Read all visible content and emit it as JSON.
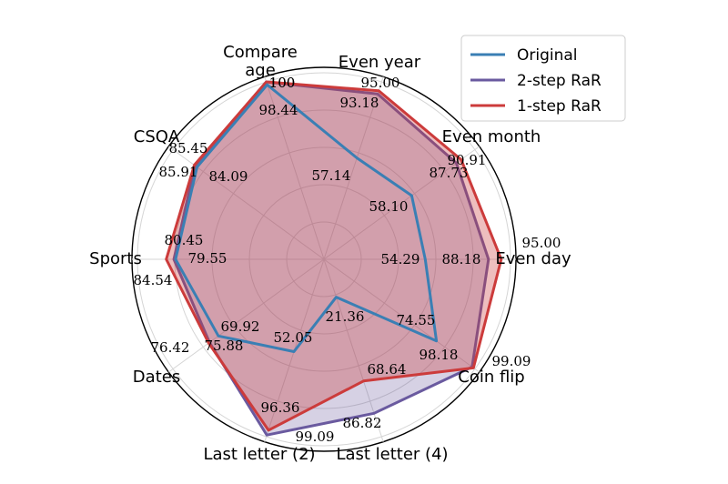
{
  "chart_data": {
    "type": "radar",
    "categories": [
      "Even year",
      "Even month",
      "Even day",
      "Coin flip",
      "Last letter (4)",
      "Last letter (2)",
      "Dates",
      "Sports",
      "CSQA",
      "Compare age"
    ],
    "rlim": [
      0,
      100
    ],
    "grid": true,
    "legend_position": "top-right",
    "series": [
      {
        "name": "Original",
        "color": "#3a7fb4",
        "values": [
          57.14,
          58.1,
          54.29,
          74.55,
          21.36,
          52.05,
          69.92,
          79.55,
          84.09,
          98.44
        ],
        "filled": false
      },
      {
        "name": "2-step RaR",
        "color": "#6a5a9f",
        "values": [
          93.18,
          87.73,
          88.18,
          98.18,
          86.82,
          99.09,
          75.88,
          80.45,
          85.45,
          100
        ],
        "filled": true
      },
      {
        "name": "1-step RaR",
        "color": "#cc3b3b",
        "values": [
          95.0,
          90.91,
          95.0,
          99.09,
          68.64,
          96.36,
          76.42,
          84.54,
          85.91,
          100
        ],
        "filled": true
      }
    ],
    "value_labels": [
      "57.14",
      "58.10",
      "54.29",
      "74.55",
      "21.36",
      "52.05",
      "69.92",
      "79.55",
      "84.09",
      "98.44",
      "93.18",
      "87.73",
      "88.18",
      "98.18",
      "86.82",
      "99.09",
      "75.88",
      "80.45",
      "85.45",
      "100",
      "95.00",
      "90.91",
      "95.00",
      "99.09",
      "68.64",
      "96.36",
      "76.42",
      "84.54",
      "85.91",
      "100"
    ]
  }
}
